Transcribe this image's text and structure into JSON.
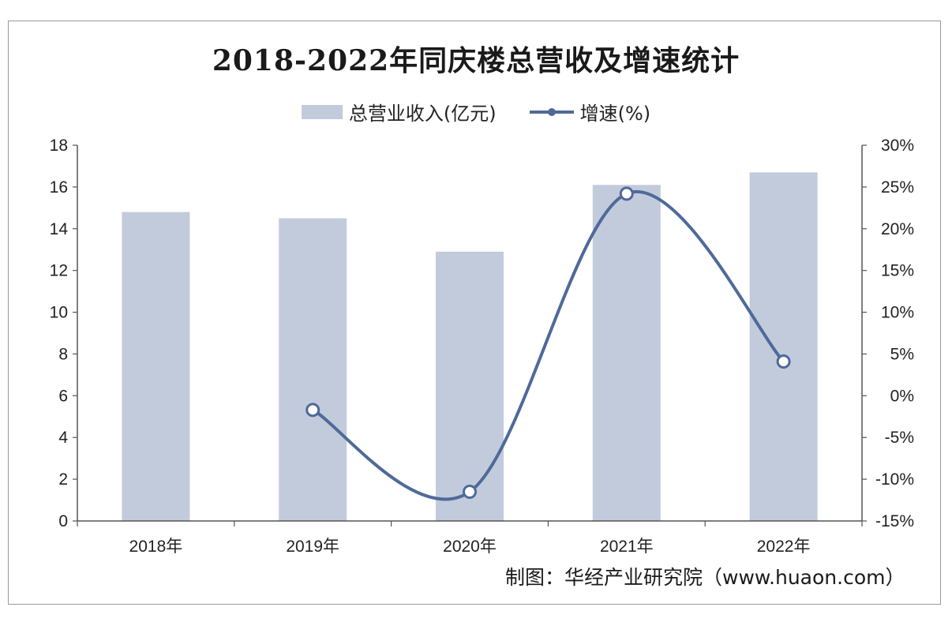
{
  "chart_data": {
    "type": "bar",
    "title": "2018-2022年同庆楼总营收及增速统计",
    "categories": [
      "2018年",
      "2019年",
      "2020年",
      "2021年",
      "2022年"
    ],
    "series": [
      {
        "name": "总营业收入(亿元)",
        "type": "bar",
        "axis": "left",
        "color": "#c2cbdc",
        "values": [
          14.8,
          14.5,
          12.9,
          16.1,
          16.7
        ]
      },
      {
        "name": "增速(%)",
        "type": "line",
        "axis": "right",
        "color": "#4f6a99",
        "values": [
          null,
          -1.7,
          -11.5,
          24.2,
          4.1
        ]
      }
    ],
    "y_left": {
      "ylim": [
        0,
        18
      ],
      "ticks": [
        "0",
        "2",
        "4",
        "6",
        "8",
        "10",
        "12",
        "14",
        "16",
        "18"
      ]
    },
    "y_right": {
      "ylim": [
        -15,
        30
      ],
      "ticks": [
        "-15%",
        "-10%",
        "-5%",
        "0%",
        "5%",
        "10%",
        "15%",
        "20%",
        "25%",
        "30%"
      ]
    },
    "legend": "top-center",
    "grid": false
  },
  "source": "制图：华经产业研究院（www.huaon.com）"
}
